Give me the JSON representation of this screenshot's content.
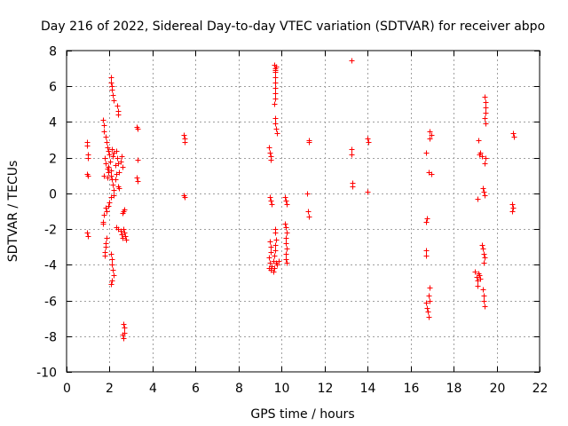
{
  "chart_data": {
    "type": "scatter",
    "title": "Day 216 of 2022, Sidereal Day-to-day VTEC variation (SDTVAR) for receiver abpo",
    "xlabel": "GPS time / hours",
    "ylabel": "SDTVAR / TECUs",
    "xlim": [
      0,
      22
    ],
    "ylim": [
      -10,
      8
    ],
    "x_ticks": [
      0,
      2,
      4,
      6,
      8,
      10,
      12,
      14,
      16,
      18,
      20,
      22
    ],
    "y_ticks": [
      -10,
      -8,
      -6,
      -4,
      -2,
      0,
      2,
      4,
      6,
      8
    ],
    "x_tick_labels": [
      "0",
      "2",
      "4",
      "6",
      "8",
      "10",
      "12",
      "14",
      "16",
      "18",
      "20",
      "22"
    ],
    "y_tick_labels": [
      "-10",
      "-8",
      "-6",
      "-4",
      "-2",
      "0",
      "2",
      "4",
      "6",
      "8"
    ],
    "grid": true,
    "series": [
      {
        "name": "SDTVAR",
        "color": "#ff0000",
        "marker": "plus",
        "points": [
          [
            0.95,
            2.9
          ],
          [
            0.95,
            2.7
          ],
          [
            0.97,
            2.2
          ],
          [
            0.97,
            2.0
          ],
          [
            0.95,
            1.1
          ],
          [
            1.0,
            1.0
          ],
          [
            0.95,
            -2.2
          ],
          [
            0.97,
            -2.4
          ],
          [
            1.7,
            4.1
          ],
          [
            1.72,
            3.8
          ],
          [
            1.75,
            3.5
          ],
          [
            1.8,
            3.2
          ],
          [
            1.85,
            2.9
          ],
          [
            1.9,
            2.6
          ],
          [
            1.95,
            2.4
          ],
          [
            1.78,
            2.0
          ],
          [
            1.82,
            1.7
          ],
          [
            1.88,
            1.4
          ],
          [
            1.92,
            1.2
          ],
          [
            1.75,
            1.0
          ],
          [
            1.9,
            0.9
          ],
          [
            1.95,
            1.5
          ],
          [
            2.0,
            2.2
          ],
          [
            2.02,
            1.8
          ],
          [
            2.05,
            1.3
          ],
          [
            2.08,
            1.0
          ],
          [
            2.1,
            0.8
          ],
          [
            2.15,
            0.5
          ],
          [
            2.2,
            0.2
          ],
          [
            2.2,
            -0.1
          ],
          [
            2.25,
            1.6
          ],
          [
            2.3,
            2.4
          ],
          [
            2.35,
            2.0
          ],
          [
            2.4,
            1.7
          ],
          [
            2.45,
            1.2
          ],
          [
            2.5,
            1.8
          ],
          [
            2.55,
            2.1
          ],
          [
            2.6,
            1.5
          ],
          [
            2.28,
            0.8
          ],
          [
            2.32,
            1.1
          ],
          [
            2.05,
            6.5
          ],
          [
            2.08,
            6.2
          ],
          [
            2.1,
            6.0
          ],
          [
            2.12,
            5.8
          ],
          [
            2.15,
            5.5
          ],
          [
            2.18,
            5.2
          ],
          [
            2.35,
            4.9
          ],
          [
            2.38,
            4.6
          ],
          [
            2.4,
            4.4
          ],
          [
            2.1,
            2.5
          ],
          [
            2.15,
            2.1
          ],
          [
            2.2,
            2.3
          ],
          [
            2.4,
            0.4
          ],
          [
            2.42,
            0.3
          ],
          [
            1.8,
            -0.8
          ],
          [
            1.85,
            -1.0
          ],
          [
            1.75,
            -1.2
          ],
          [
            1.7,
            -1.6
          ],
          [
            1.7,
            -1.7
          ],
          [
            1.95,
            -0.7
          ],
          [
            2.0,
            -0.5
          ],
          [
            2.05,
            -0.2
          ],
          [
            1.85,
            -2.5
          ],
          [
            1.82,
            -2.8
          ],
          [
            1.8,
            -3.0
          ],
          [
            1.78,
            -3.3
          ],
          [
            1.76,
            -3.5
          ],
          [
            2.05,
            -3.4
          ],
          [
            2.1,
            -3.7
          ],
          [
            2.12,
            -4.0
          ],
          [
            2.15,
            -4.3
          ],
          [
            2.18,
            -4.6
          ],
          [
            2.1,
            -4.9
          ],
          [
            2.08,
            -5.1
          ],
          [
            2.3,
            -1.9
          ],
          [
            2.4,
            -2.0
          ],
          [
            2.5,
            -2.1
          ],
          [
            2.55,
            -2.3
          ],
          [
            2.6,
            -2.5
          ],
          [
            2.65,
            -2.0
          ],
          [
            2.7,
            -2.2
          ],
          [
            2.72,
            -2.4
          ],
          [
            2.75,
            -2.6
          ],
          [
            2.6,
            -1.1
          ],
          [
            2.65,
            -1.0
          ],
          [
            2.7,
            -0.9
          ],
          [
            2.65,
            -7.3
          ],
          [
            2.68,
            -7.5
          ],
          [
            2.7,
            -7.8
          ],
          [
            2.65,
            -8.1
          ],
          [
            2.62,
            -7.9
          ],
          [
            3.25,
            3.7
          ],
          [
            3.3,
            3.6
          ],
          [
            3.3,
            1.9
          ],
          [
            3.28,
            0.9
          ],
          [
            3.3,
            0.7
          ],
          [
            5.45,
            3.3
          ],
          [
            5.5,
            3.1
          ],
          [
            5.5,
            2.9
          ],
          [
            5.45,
            -0.1
          ],
          [
            5.5,
            -0.2
          ],
          [
            9.4,
            2.6
          ],
          [
            9.45,
            2.3
          ],
          [
            9.48,
            2.1
          ],
          [
            9.5,
            1.9
          ],
          [
            9.45,
            -0.2
          ],
          [
            9.5,
            -0.4
          ],
          [
            9.52,
            -0.6
          ],
          [
            9.45,
            -2.7
          ],
          [
            9.48,
            -3.0
          ],
          [
            9.5,
            -3.3
          ],
          [
            9.42,
            -3.6
          ],
          [
            9.45,
            -3.9
          ],
          [
            9.4,
            -4.2
          ],
          [
            9.5,
            -4.3
          ],
          [
            9.55,
            -4.1
          ],
          [
            9.6,
            -3.8
          ],
          [
            9.65,
            -3.5
          ],
          [
            9.7,
            -3.2
          ],
          [
            9.72,
            -2.9
          ],
          [
            9.75,
            -2.6
          ],
          [
            9.7,
            -2.2
          ],
          [
            9.68,
            -2.0
          ],
          [
            9.75,
            -3.9
          ],
          [
            9.8,
            -4.0
          ],
          [
            9.85,
            -3.8
          ],
          [
            9.6,
            -4.4
          ],
          [
            9.65,
            -4.2
          ],
          [
            9.65,
            7.2
          ],
          [
            9.7,
            7.0
          ],
          [
            9.72,
            6.8
          ],
          [
            9.75,
            7.1
          ],
          [
            9.68,
            6.5
          ],
          [
            9.7,
            6.2
          ],
          [
            9.72,
            5.9
          ],
          [
            9.7,
            5.6
          ],
          [
            9.68,
            5.3
          ],
          [
            9.65,
            5.0
          ],
          [
            9.7,
            4.2
          ],
          [
            9.72,
            3.9
          ],
          [
            9.75,
            3.6
          ],
          [
            9.78,
            3.4
          ],
          [
            9.7,
            6.9
          ],
          [
            10.15,
            -0.2
          ],
          [
            10.2,
            -0.4
          ],
          [
            10.25,
            -0.6
          ],
          [
            10.15,
            -1.7
          ],
          [
            10.2,
            -1.9
          ],
          [
            10.22,
            -2.2
          ],
          [
            10.18,
            -2.5
          ],
          [
            10.2,
            -2.8
          ],
          [
            10.22,
            -3.1
          ],
          [
            10.18,
            -3.4
          ],
          [
            10.2,
            -3.7
          ],
          [
            10.22,
            -3.9
          ],
          [
            11.25,
            3.0
          ],
          [
            11.25,
            2.9
          ],
          [
            11.2,
            0.0
          ],
          [
            11.22,
            -1.0
          ],
          [
            11.25,
            -1.3
          ],
          [
            13.25,
            7.45
          ],
          [
            13.25,
            2.5
          ],
          [
            13.25,
            2.2
          ],
          [
            13.3,
            0.6
          ],
          [
            13.28,
            0.4
          ],
          [
            14.0,
            3.1
          ],
          [
            14.02,
            2.9
          ],
          [
            14.0,
            0.1
          ],
          [
            16.7,
            2.3
          ],
          [
            16.75,
            -1.4
          ],
          [
            16.72,
            -1.6
          ],
          [
            16.7,
            -3.2
          ],
          [
            16.72,
            -3.5
          ],
          [
            16.7,
            -6.1
          ],
          [
            16.75,
            -6.4
          ],
          [
            16.8,
            -6.6
          ],
          [
            16.85,
            -6.9
          ],
          [
            16.9,
            -6.0
          ],
          [
            16.85,
            -5.7
          ],
          [
            16.88,
            -5.3
          ],
          [
            16.9,
            3.5
          ],
          [
            16.95,
            3.3
          ],
          [
            16.9,
            3.1
          ],
          [
            16.85,
            1.2
          ],
          [
            16.95,
            1.1
          ],
          [
            19.0,
            -4.4
          ],
          [
            19.05,
            -4.7
          ],
          [
            19.1,
            -4.9
          ],
          [
            19.12,
            -5.2
          ],
          [
            19.15,
            -4.5
          ],
          [
            19.2,
            -4.6
          ],
          [
            19.25,
            -4.8
          ],
          [
            19.1,
            -0.3
          ],
          [
            19.15,
            3.0
          ],
          [
            19.2,
            2.2
          ],
          [
            19.25,
            2.3
          ],
          [
            19.3,
            2.1
          ],
          [
            19.35,
            0.3
          ],
          [
            19.4,
            0.1
          ],
          [
            19.45,
            -0.1
          ],
          [
            19.3,
            -2.9
          ],
          [
            19.35,
            -3.1
          ],
          [
            19.4,
            -3.4
          ],
          [
            19.45,
            -3.6
          ],
          [
            19.4,
            -3.9
          ],
          [
            19.35,
            -5.4
          ],
          [
            19.4,
            -5.7
          ],
          [
            19.42,
            -6.0
          ],
          [
            19.45,
            -6.3
          ],
          [
            19.45,
            5.4
          ],
          [
            19.5,
            5.1
          ],
          [
            19.48,
            4.8
          ],
          [
            19.5,
            4.5
          ],
          [
            19.45,
            4.2
          ],
          [
            19.48,
            3.9
          ],
          [
            19.5,
            2.0
          ],
          [
            19.45,
            1.7
          ],
          [
            20.75,
            3.4
          ],
          [
            20.8,
            3.2
          ],
          [
            20.7,
            -0.6
          ],
          [
            20.75,
            -0.8
          ],
          [
            20.72,
            -1.0
          ]
        ]
      }
    ]
  }
}
